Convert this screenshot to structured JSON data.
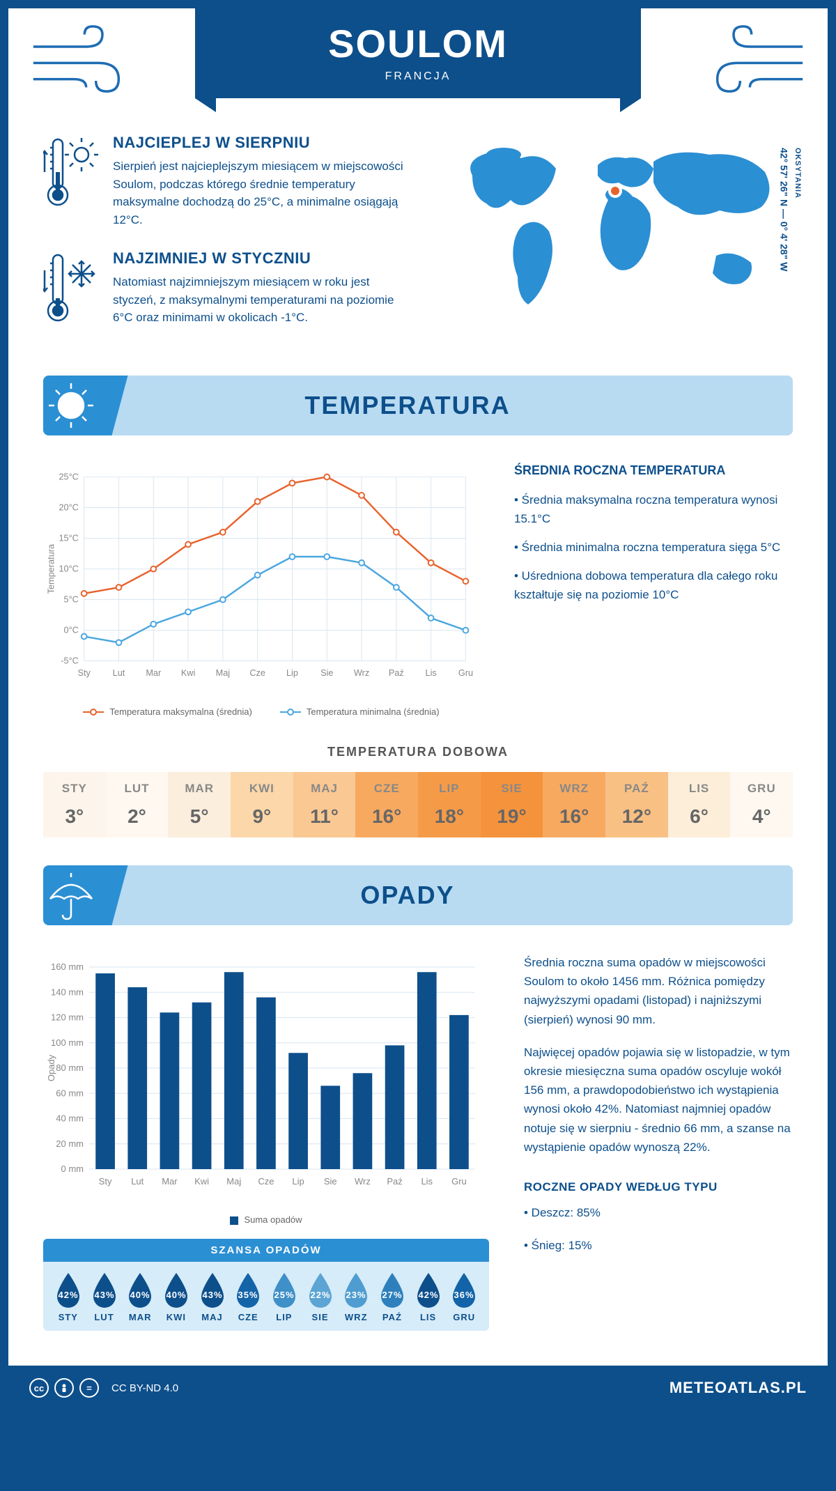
{
  "header": {
    "city": "SOULOM",
    "country": "FRANCJA"
  },
  "coords": {
    "region": "OKSYTANIA",
    "lat": "42° 57' 26\" N",
    "sep": "—",
    "lon": "0° 4' 28\" W"
  },
  "intro": {
    "warm": {
      "title": "NAJCIEPLEJ W SIERPNIU",
      "text": "Sierpień jest najcieplejszym miesiącem w miejscowości Soulom, podczas którego średnie temperatury maksymalne dochodzą do 25°C, a minimalne osiągają 12°C."
    },
    "cold": {
      "title": "NAJZIMNIEJ W STYCZNIU",
      "text": "Natomiast najzimniejszym miesiącem w roku jest styczeń, z maksymalnymi temperaturami na poziomie 6°C oraz minimami w okolicach -1°C."
    }
  },
  "temp_section": {
    "title": "TEMPERATURA",
    "annual_title": "ŚREDNIA ROCZNA TEMPERATURA",
    "bullets": [
      "• Średnia maksymalna roczna temperatura wynosi 15.1°C",
      "• Średnia minimalna roczna temperatura sięga 5°C",
      "• Uśredniona dobowa temperatura dla całego roku kształtuje się na poziomie 10°C"
    ],
    "chart": {
      "type": "line",
      "months": [
        "Sty",
        "Lut",
        "Mar",
        "Kwi",
        "Maj",
        "Cze",
        "Lip",
        "Sie",
        "Wrz",
        "Paź",
        "Lis",
        "Gru"
      ],
      "ylabel": "Temperatura",
      "ymin": -5,
      "ymax": 25,
      "ystep": 5,
      "yticks": [
        "-5°C",
        "0°C",
        "5°C",
        "10°C",
        "15°C",
        "20°C",
        "25°C"
      ],
      "grid_color": "#d8e6f0",
      "series": [
        {
          "name": "Temperatura maksymalna (średnia)",
          "color": "#e8622c",
          "values": [
            6,
            7,
            10,
            14,
            16,
            21,
            24,
            25,
            22,
            16,
            11,
            8
          ]
        },
        {
          "name": "Temperatura minimalna (średnia)",
          "color": "#4aa6e0",
          "values": [
            -1,
            -2,
            1,
            3,
            5,
            9,
            12,
            12,
            11,
            7,
            2,
            0
          ]
        }
      ]
    },
    "daily": {
      "title": "TEMPERATURA DOBOWA",
      "months": [
        "STY",
        "LUT",
        "MAR",
        "KWI",
        "MAJ",
        "CZE",
        "LIP",
        "SIE",
        "WRZ",
        "PAŹ",
        "LIS",
        "GRU"
      ],
      "values": [
        "3°",
        "2°",
        "5°",
        "9°",
        "11°",
        "16°",
        "18°",
        "19°",
        "16°",
        "12°",
        "6°",
        "4°"
      ],
      "colors": [
        "#fdf5eb",
        "#fef8f1",
        "#fceedd",
        "#fbd7a9",
        "#fac892",
        "#f7a960",
        "#f59b48",
        "#f4933c",
        "#f7a960",
        "#f9c083",
        "#fdeed9",
        "#fef8f1"
      ]
    }
  },
  "precip_section": {
    "title": "OPADY",
    "chart": {
      "type": "bar",
      "months": [
        "Sty",
        "Lut",
        "Mar",
        "Kwi",
        "Maj",
        "Cze",
        "Lip",
        "Sie",
        "Wrz",
        "Paź",
        "Lis",
        "Gru"
      ],
      "ylabel": "Opady",
      "ymin": 0,
      "ymax": 160,
      "ystep": 20,
      "yticks": [
        "0 mm",
        "20 mm",
        "40 mm",
        "60 mm",
        "80 mm",
        "100 mm",
        "120 mm",
        "140 mm",
        "160 mm"
      ],
      "bar_color": "#0d4f8b",
      "grid_color": "#d8e6f0",
      "values": [
        155,
        144,
        124,
        132,
        156,
        136,
        92,
        66,
        76,
        98,
        156,
        122
      ],
      "legend": "Suma opadów"
    },
    "text1": "Średnia roczna suma opadów w miejscowości Soulom to około 1456 mm. Różnica pomiędzy najwyższymi opadami (listopad) i najniższymi (sierpień) wynosi 90 mm.",
    "text2": "Najwięcej opadów pojawia się w listopadzie, w tym okresie miesięczna suma opadów oscyluje wokół 156 mm, a prawdopodobieństwo ich wystąpienia wynosi około 42%. Natomiast najmniej opadów notuje się w sierpniu - średnio 66 mm, a szanse na wystąpienie opadów wynoszą 22%.",
    "by_type_title": "ROCZNE OPADY WEDŁUG TYPU",
    "by_type": [
      "• Deszcz: 85%",
      "• Śnieg: 15%"
    ],
    "chance": {
      "title": "SZANSA OPADÓW",
      "months": [
        "STY",
        "LUT",
        "MAR",
        "KWI",
        "MAJ",
        "CZE",
        "LIP",
        "SIE",
        "WRZ",
        "PAŹ",
        "LIS",
        "GRU"
      ],
      "values": [
        "42%",
        "43%",
        "40%",
        "40%",
        "43%",
        "35%",
        "25%",
        "22%",
        "23%",
        "27%",
        "42%",
        "36%"
      ],
      "drop_colors": [
        "#0d4f8b",
        "#0d4f8b",
        "#0d4f8b",
        "#0d4f8b",
        "#0d4f8b",
        "#1464a8",
        "#3f8fc8",
        "#5ba4d4",
        "#4f9dd0",
        "#2e80bd",
        "#0d4f8b",
        "#1263a7"
      ]
    }
  },
  "footer": {
    "license": "CC BY-ND 4.0",
    "site": "METEOATLAS.PL"
  }
}
